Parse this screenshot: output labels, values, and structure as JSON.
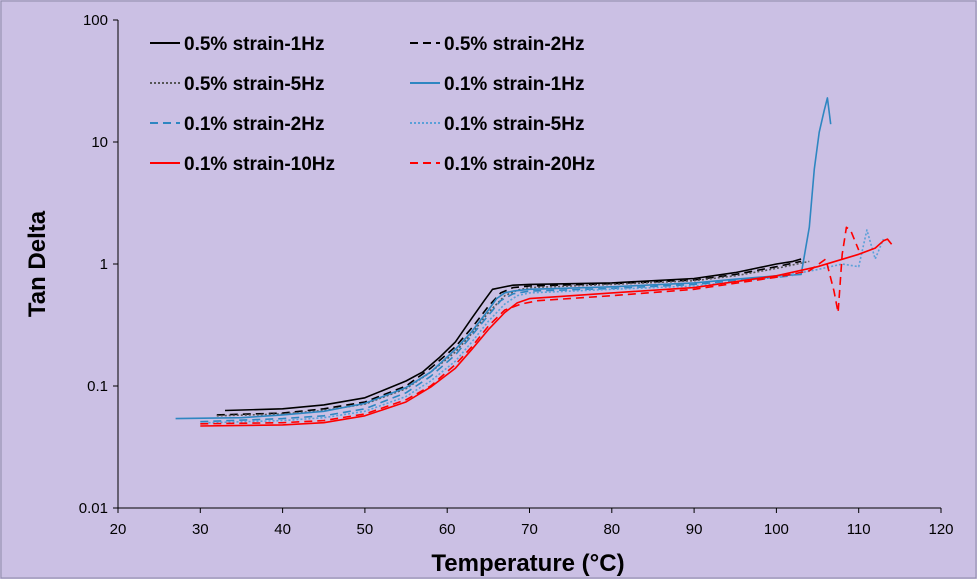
{
  "chart_data": {
    "type": "line",
    "xlabel": "Temperature (°C)",
    "ylabel": "Tan Delta",
    "xlim": [
      20,
      120
    ],
    "ylim": [
      0.01,
      100
    ],
    "yscale": "log",
    "x_ticks": [
      "20",
      "30",
      "40",
      "50",
      "60",
      "70",
      "80",
      "90",
      "100",
      "110",
      "120"
    ],
    "y_ticks": [
      "0.01",
      "0.1",
      "1",
      "10",
      "100"
    ],
    "grid": false,
    "legend_position": "top-left",
    "background": "#cbc0e4",
    "series": [
      {
        "name": "0.5% strain-1Hz",
        "color": "#000000",
        "dash": "solid",
        "x": [
          33,
          40,
          45,
          50,
          55,
          57,
          59,
          61,
          63,
          64.5,
          65.5,
          66.5,
          68,
          70,
          80,
          90,
          95,
          100,
          102,
          103
        ],
        "y": [
          0.063,
          0.065,
          0.07,
          0.08,
          0.11,
          0.13,
          0.17,
          0.23,
          0.36,
          0.5,
          0.62,
          0.64,
          0.67,
          0.68,
          0.7,
          0.76,
          0.85,
          1.0,
          1.05,
          1.1
        ]
      },
      {
        "name": "0.5% strain-2Hz",
        "color": "#000000",
        "dash": "dashed",
        "x": [
          32,
          40,
          45,
          50,
          55,
          58,
          61,
          63,
          65,
          66.5,
          68,
          70,
          80,
          90,
          95,
          100,
          103
        ],
        "y": [
          0.058,
          0.06,
          0.065,
          0.074,
          0.1,
          0.14,
          0.21,
          0.3,
          0.45,
          0.58,
          0.64,
          0.66,
          0.69,
          0.74,
          0.82,
          0.95,
          1.05
        ]
      },
      {
        "name": "0.5% strain-5Hz",
        "color": "#555555",
        "dash": "dotted",
        "x": [
          32,
          40,
          45,
          50,
          55,
          58,
          61,
          63,
          65,
          67,
          68.5,
          70,
          80,
          90,
          95,
          100,
          104
        ],
        "y": [
          0.057,
          0.059,
          0.063,
          0.071,
          0.095,
          0.13,
          0.19,
          0.27,
          0.4,
          0.55,
          0.61,
          0.64,
          0.68,
          0.73,
          0.8,
          0.92,
          1.05
        ]
      },
      {
        "name": "0.1% strain-1Hz",
        "color": "#2e86c1",
        "dash": "solid",
        "x": [
          27,
          35,
          40,
          45,
          50,
          55,
          58,
          61,
          63,
          65,
          66,
          67,
          68,
          70,
          80,
          90,
          95,
          100,
          103,
          104,
          104.6,
          105.2,
          105.8,
          106.2,
          106.6
        ],
        "y": [
          0.054,
          0.055,
          0.058,
          0.062,
          0.072,
          0.097,
          0.13,
          0.2,
          0.28,
          0.42,
          0.52,
          0.58,
          0.6,
          0.62,
          0.65,
          0.7,
          0.75,
          0.8,
          0.82,
          2.0,
          6.0,
          12,
          18,
          23,
          14
        ]
      },
      {
        "name": "0.1% strain-2Hz",
        "color": "#2e86c1",
        "dash": "dashed",
        "x": [
          30,
          40,
          45,
          50,
          55,
          58,
          61,
          63,
          65,
          66.5,
          68,
          70,
          80,
          90,
          95,
          100,
          102
        ],
        "y": [
          0.051,
          0.054,
          0.057,
          0.065,
          0.088,
          0.12,
          0.18,
          0.26,
          0.38,
          0.5,
          0.57,
          0.6,
          0.63,
          0.68,
          0.73,
          0.78,
          0.8
        ]
      },
      {
        "name": "0.1% strain-5Hz",
        "color": "#5aa0d8",
        "dash": "dotted",
        "x": [
          31,
          40,
          45,
          50,
          55,
          58,
          61,
          63,
          65,
          67,
          68.5,
          70,
          80,
          90,
          100,
          105,
          108,
          110,
          111,
          112,
          113
        ],
        "y": [
          0.05,
          0.052,
          0.055,
          0.062,
          0.082,
          0.11,
          0.16,
          0.23,
          0.34,
          0.47,
          0.55,
          0.58,
          0.62,
          0.66,
          0.78,
          0.9,
          1.0,
          0.95,
          1.9,
          1.1,
          1.6
        ]
      },
      {
        "name": "0.1% strain-10Hz",
        "color": "#ff0000",
        "dash": "solid",
        "x": [
          30,
          40,
          45,
          50,
          55,
          58,
          61,
          63,
          65,
          67,
          68.5,
          70,
          80,
          90,
          100,
          105,
          110,
          112,
          113,
          113.5,
          114
        ],
        "y": [
          0.047,
          0.048,
          0.05,
          0.057,
          0.074,
          0.098,
          0.14,
          0.2,
          0.29,
          0.4,
          0.48,
          0.52,
          0.58,
          0.64,
          0.8,
          0.95,
          1.2,
          1.35,
          1.55,
          1.6,
          1.45
        ]
      },
      {
        "name": "0.1% strain-20Hz",
        "color": "#ff0000",
        "dash": "dashed",
        "x": [
          30,
          40,
          45,
          50,
          55,
          58,
          61,
          63,
          65,
          67,
          69,
          71,
          80,
          90,
          100,
          104,
          106,
          107,
          107.5,
          108,
          108.5,
          109,
          110
        ],
        "y": [
          0.049,
          0.05,
          0.052,
          0.059,
          0.077,
          0.1,
          0.15,
          0.21,
          0.31,
          0.42,
          0.47,
          0.5,
          0.55,
          0.62,
          0.78,
          0.88,
          1.1,
          0.6,
          0.4,
          1.2,
          2.0,
          1.9,
          1.3
        ]
      }
    ]
  }
}
